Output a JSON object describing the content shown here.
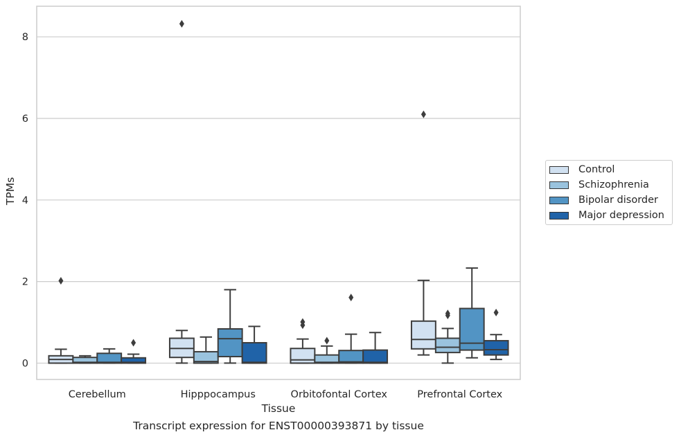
{
  "chart_data": {
    "type": "box",
    "title": "",
    "caption": "Transcript expression for ENST00000393871 by tissue",
    "xlabel": "Tissue",
    "ylabel": "TPMs",
    "ylim": [
      -0.4,
      8.75
    ],
    "yticks": [
      0,
      2,
      4,
      6,
      8
    ],
    "grid": "horizontal",
    "legend_position": "right",
    "categories": [
      "Cerebellum",
      "Hipppocampus",
      "Orbitofontal Cortex",
      "Prefrontal Cortex"
    ],
    "series": [
      {
        "name": "Control",
        "color": "#d1e1f1",
        "boxes": [
          {
            "whisker_low": 0.0,
            "q1": 0.0,
            "median": 0.09,
            "q3": 0.18,
            "whisker_high": 0.34,
            "outliers": [
              2.02
            ]
          },
          {
            "whisker_low": 0.0,
            "q1": 0.14,
            "median": 0.36,
            "q3": 0.61,
            "whisker_high": 0.8,
            "outliers": [
              8.32
            ]
          },
          {
            "whisker_low": 0.0,
            "q1": 0.0,
            "median": 0.08,
            "q3": 0.36,
            "whisker_high": 0.59,
            "outliers": [
              0.93,
              1.01
            ]
          },
          {
            "whisker_low": 0.2,
            "q1": 0.35,
            "median": 0.58,
            "q3": 1.03,
            "whisker_high": 2.03,
            "outliers": [
              6.1
            ]
          }
        ]
      },
      {
        "name": "Schizophrenia",
        "color": "#9ac3de",
        "boxes": [
          {
            "whisker_low": 0.0,
            "q1": 0.0,
            "median": 0.02,
            "q3": 0.14,
            "whisker_high": 0.18,
            "outliers": []
          },
          {
            "whisker_low": 0.0,
            "q1": 0.0,
            "median": 0.04,
            "q3": 0.28,
            "whisker_high": 0.64,
            "outliers": []
          },
          {
            "whisker_low": 0.0,
            "q1": 0.0,
            "median": 0.02,
            "q3": 0.2,
            "whisker_high": 0.42,
            "outliers": [
              0.55
            ]
          },
          {
            "whisker_low": 0.0,
            "q1": 0.26,
            "median": 0.39,
            "q3": 0.61,
            "whisker_high": 0.85,
            "outliers": [
              1.17,
              1.22
            ]
          }
        ]
      },
      {
        "name": "Bipolar disorder",
        "color": "#5294c4",
        "boxes": [
          {
            "whisker_low": 0.0,
            "q1": 0.0,
            "median": 0.02,
            "q3": 0.24,
            "whisker_high": 0.35,
            "outliers": []
          },
          {
            "whisker_low": 0.0,
            "q1": 0.16,
            "median": 0.6,
            "q3": 0.84,
            "whisker_high": 1.8,
            "outliers": []
          },
          {
            "whisker_low": 0.0,
            "q1": 0.0,
            "median": 0.03,
            "q3": 0.31,
            "whisker_high": 0.71,
            "outliers": [
              1.61
            ]
          },
          {
            "whisker_low": 0.13,
            "q1": 0.32,
            "median": 0.49,
            "q3": 1.34,
            "whisker_high": 2.33,
            "outliers": []
          }
        ]
      },
      {
        "name": "Major depression",
        "color": "#2063a8",
        "boxes": [
          {
            "whisker_low": 0.0,
            "q1": 0.0,
            "median": 0.02,
            "q3": 0.13,
            "whisker_high": 0.22,
            "outliers": [
              0.5
            ]
          },
          {
            "whisker_low": 0.0,
            "q1": 0.0,
            "median": 0.02,
            "q3": 0.5,
            "whisker_high": 0.9,
            "outliers": []
          },
          {
            "whisker_low": 0.0,
            "q1": 0.0,
            "median": 0.02,
            "q3": 0.32,
            "whisker_high": 0.75,
            "outliers": []
          },
          {
            "whisker_low": 0.09,
            "q1": 0.2,
            "median": 0.33,
            "q3": 0.55,
            "whisker_high": 0.7,
            "outliers": [
              1.24
            ]
          }
        ]
      }
    ]
  }
}
